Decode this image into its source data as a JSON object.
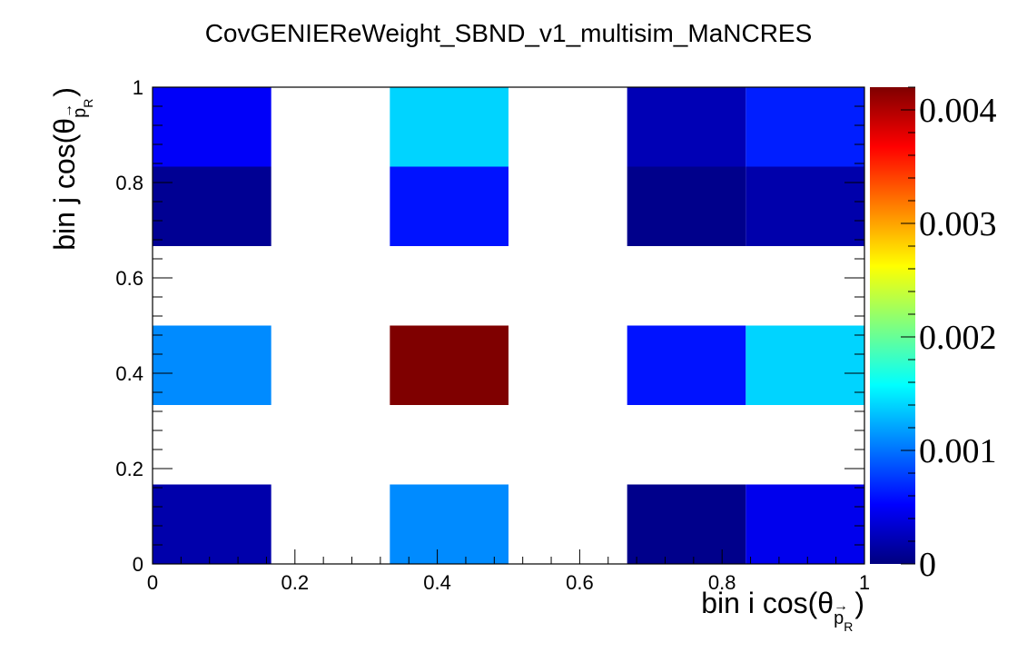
{
  "chart_data": {
    "type": "heatmap",
    "title": "CovGENIEReWeight_SBND_v1_multisim_MaNCRES",
    "xlabel": {
      "main": "bin i cos(θ",
      "arrow": "→",
      "sub": "p",
      "subsub": "R",
      "close": ")"
    },
    "ylabel": {
      "main": "bin j cos(θ",
      "arrow": "→",
      "sub": "p",
      "subsub": "R",
      "close": ")"
    },
    "xlim": [
      0,
      1
    ],
    "ylim": [
      0,
      1
    ],
    "x_ticks": [
      "0",
      "0.2",
      "0.4",
      "0.6",
      "0.8",
      "1"
    ],
    "y_ticks": [
      "0",
      "0.2",
      "0.4",
      "0.6",
      "0.8",
      "1"
    ],
    "x_tick_values": [
      0,
      0.2,
      0.4,
      0.6,
      0.8,
      1
    ],
    "y_tick_values": [
      0,
      0.2,
      0.4,
      0.6,
      0.8,
      1
    ],
    "x_bins": 6,
    "y_bins": 6,
    "z_range": [
      0,
      0.0042
    ],
    "colorbar_ticks": [
      "0",
      "0.001",
      "0.002",
      "0.003",
      "0.004"
    ],
    "colorbar_tick_values": [
      0,
      0.001,
      0.002,
      0.003,
      0.004
    ],
    "cells": [
      {
        "i": 0,
        "j": 0,
        "value": 0.00018
      },
      {
        "i": 2,
        "j": 0,
        "value": 0.0011
      },
      {
        "i": 4,
        "j": 0,
        "value": 5e-05
      },
      {
        "i": 5,
        "j": 0,
        "value": 0.00045
      },
      {
        "i": 0,
        "j": 2,
        "value": 0.0011
      },
      {
        "i": 2,
        "j": 2,
        "value": 0.0042
      },
      {
        "i": 4,
        "j": 2,
        "value": 0.0006
      },
      {
        "i": 5,
        "j": 2,
        "value": 0.0014
      },
      {
        "i": 0,
        "j": 4,
        "value": 8e-05
      },
      {
        "i": 2,
        "j": 4,
        "value": 0.0006
      },
      {
        "i": 4,
        "j": 4,
        "value": 5e-05
      },
      {
        "i": 5,
        "j": 4,
        "value": 0.00018
      },
      {
        "i": 0,
        "j": 5,
        "value": 0.0005
      },
      {
        "i": 2,
        "j": 5,
        "value": 0.0014
      },
      {
        "i": 4,
        "j": 5,
        "value": 0.00022
      },
      {
        "i": 5,
        "j": 5,
        "value": 0.00065
      }
    ],
    "palette": [
      "#00007f",
      "#0000ff",
      "#007fff",
      "#00ffff",
      "#7fff7f",
      "#ffff00",
      "#ff7f00",
      "#ff0000",
      "#7f0000"
    ]
  }
}
